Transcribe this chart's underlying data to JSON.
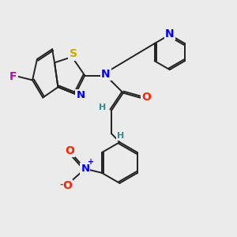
{
  "bg_color": "#ebebeb",
  "bond_color": "#222222",
  "bond_width": 1.4,
  "dbo": 0.07,
  "atom_colors": {
    "N": "#0000ee",
    "S": "#ccaa00",
    "F": "#cc00cc",
    "O": "#ff2200",
    "H": "#3a8888"
  },
  "fs": 9.5,
  "fs_s": 7
}
